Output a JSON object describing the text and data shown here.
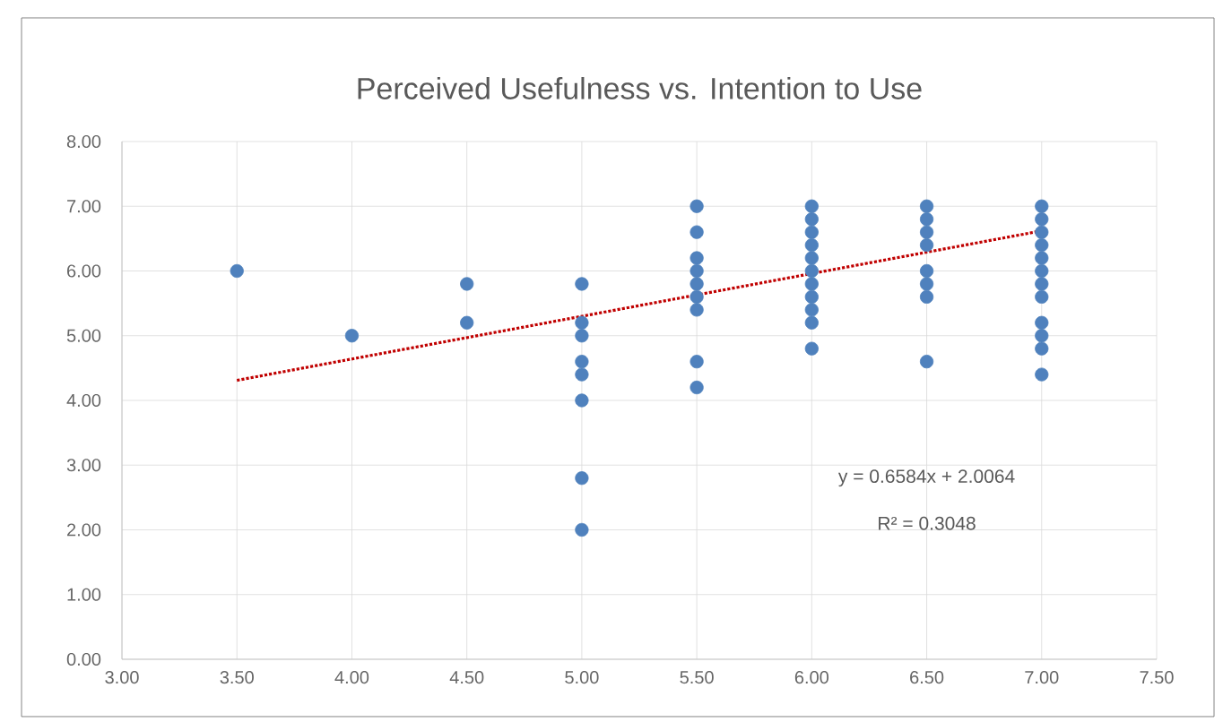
{
  "chart_data": {
    "type": "scatter",
    "title": "Perceived Usefulness vs. Intention to Use",
    "xlim": [
      3,
      7.5
    ],
    "xticks": [
      {
        "value": 3,
        "label": "3.00"
      },
      {
        "value": 3.5,
        "label": "3.50"
      },
      {
        "value": 4,
        "label": "4.00"
      },
      {
        "value": 4.5,
        "label": "4.50"
      },
      {
        "value": 5,
        "label": "5.00"
      },
      {
        "value": 5.5,
        "label": "5.50"
      },
      {
        "value": 6,
        "label": "6.00"
      },
      {
        "value": 6.5,
        "label": "6.50"
      },
      {
        "value": 7,
        "label": "7.00"
      },
      {
        "value": 7.5,
        "label": "7.50"
      }
    ],
    "ylim": [
      0,
      8
    ],
    "yticks": [
      {
        "value": 0,
        "label": "0.00"
      },
      {
        "value": 1,
        "label": "1.00"
      },
      {
        "value": 2,
        "label": "2.00"
      },
      {
        "value": 3,
        "label": "3.00"
      },
      {
        "value": 4,
        "label": "4.00"
      },
      {
        "value": 5,
        "label": "5.00"
      },
      {
        "value": 6,
        "label": "6.00"
      },
      {
        "value": 7,
        "label": "7.00"
      },
      {
        "value": 8,
        "label": "8.00"
      }
    ],
    "grid": true,
    "marker": "circle",
    "series": [
      {
        "color": "#4f81bd",
        "x": [
          3.5,
          4,
          4.5,
          4.5,
          5,
          5,
          5,
          5,
          5,
          5,
          5,
          5,
          5.5,
          5.5,
          5.5,
          5.5,
          5.5,
          5.5,
          5.5,
          5.5,
          5.5,
          6,
          6,
          6,
          6,
          6,
          6,
          6,
          6,
          6,
          6,
          6,
          6.5,
          6.5,
          6.5,
          6.5,
          6.5,
          6.5,
          6.5,
          6.5,
          7,
          7,
          7,
          7,
          7,
          7,
          7,
          7,
          7,
          7,
          7,
          7
        ],
        "values": [
          6,
          5,
          5.8,
          5.2,
          5.8,
          5.2,
          5,
          4.6,
          4.4,
          4,
          2.8,
          2,
          7,
          6.6,
          6.2,
          6,
          5.8,
          5.6,
          5.4,
          4.6,
          4.2,
          7,
          6.8,
          6.6,
          6.4,
          6.2,
          6,
          5.8,
          5.6,
          5.4,
          5.2,
          4.8,
          7,
          6.8,
          6.6,
          6.4,
          6,
          5.8,
          5.6,
          4.6,
          7,
          6.8,
          6.6,
          6.4,
          6.2,
          6,
          5.8,
          5.6,
          5.2,
          5,
          4.8,
          4.4
        ]
      },
      {
        "type": "line",
        "color": "#c00000",
        "line_style": "dotted",
        "marker": "none",
        "x": [
          3.5,
          7
        ],
        "values": [
          4.31,
          6.62
        ]
      }
    ],
    "annotations": [
      "y = 0.6584x + 2.0064",
      "R² = 0.3048"
    ]
  }
}
